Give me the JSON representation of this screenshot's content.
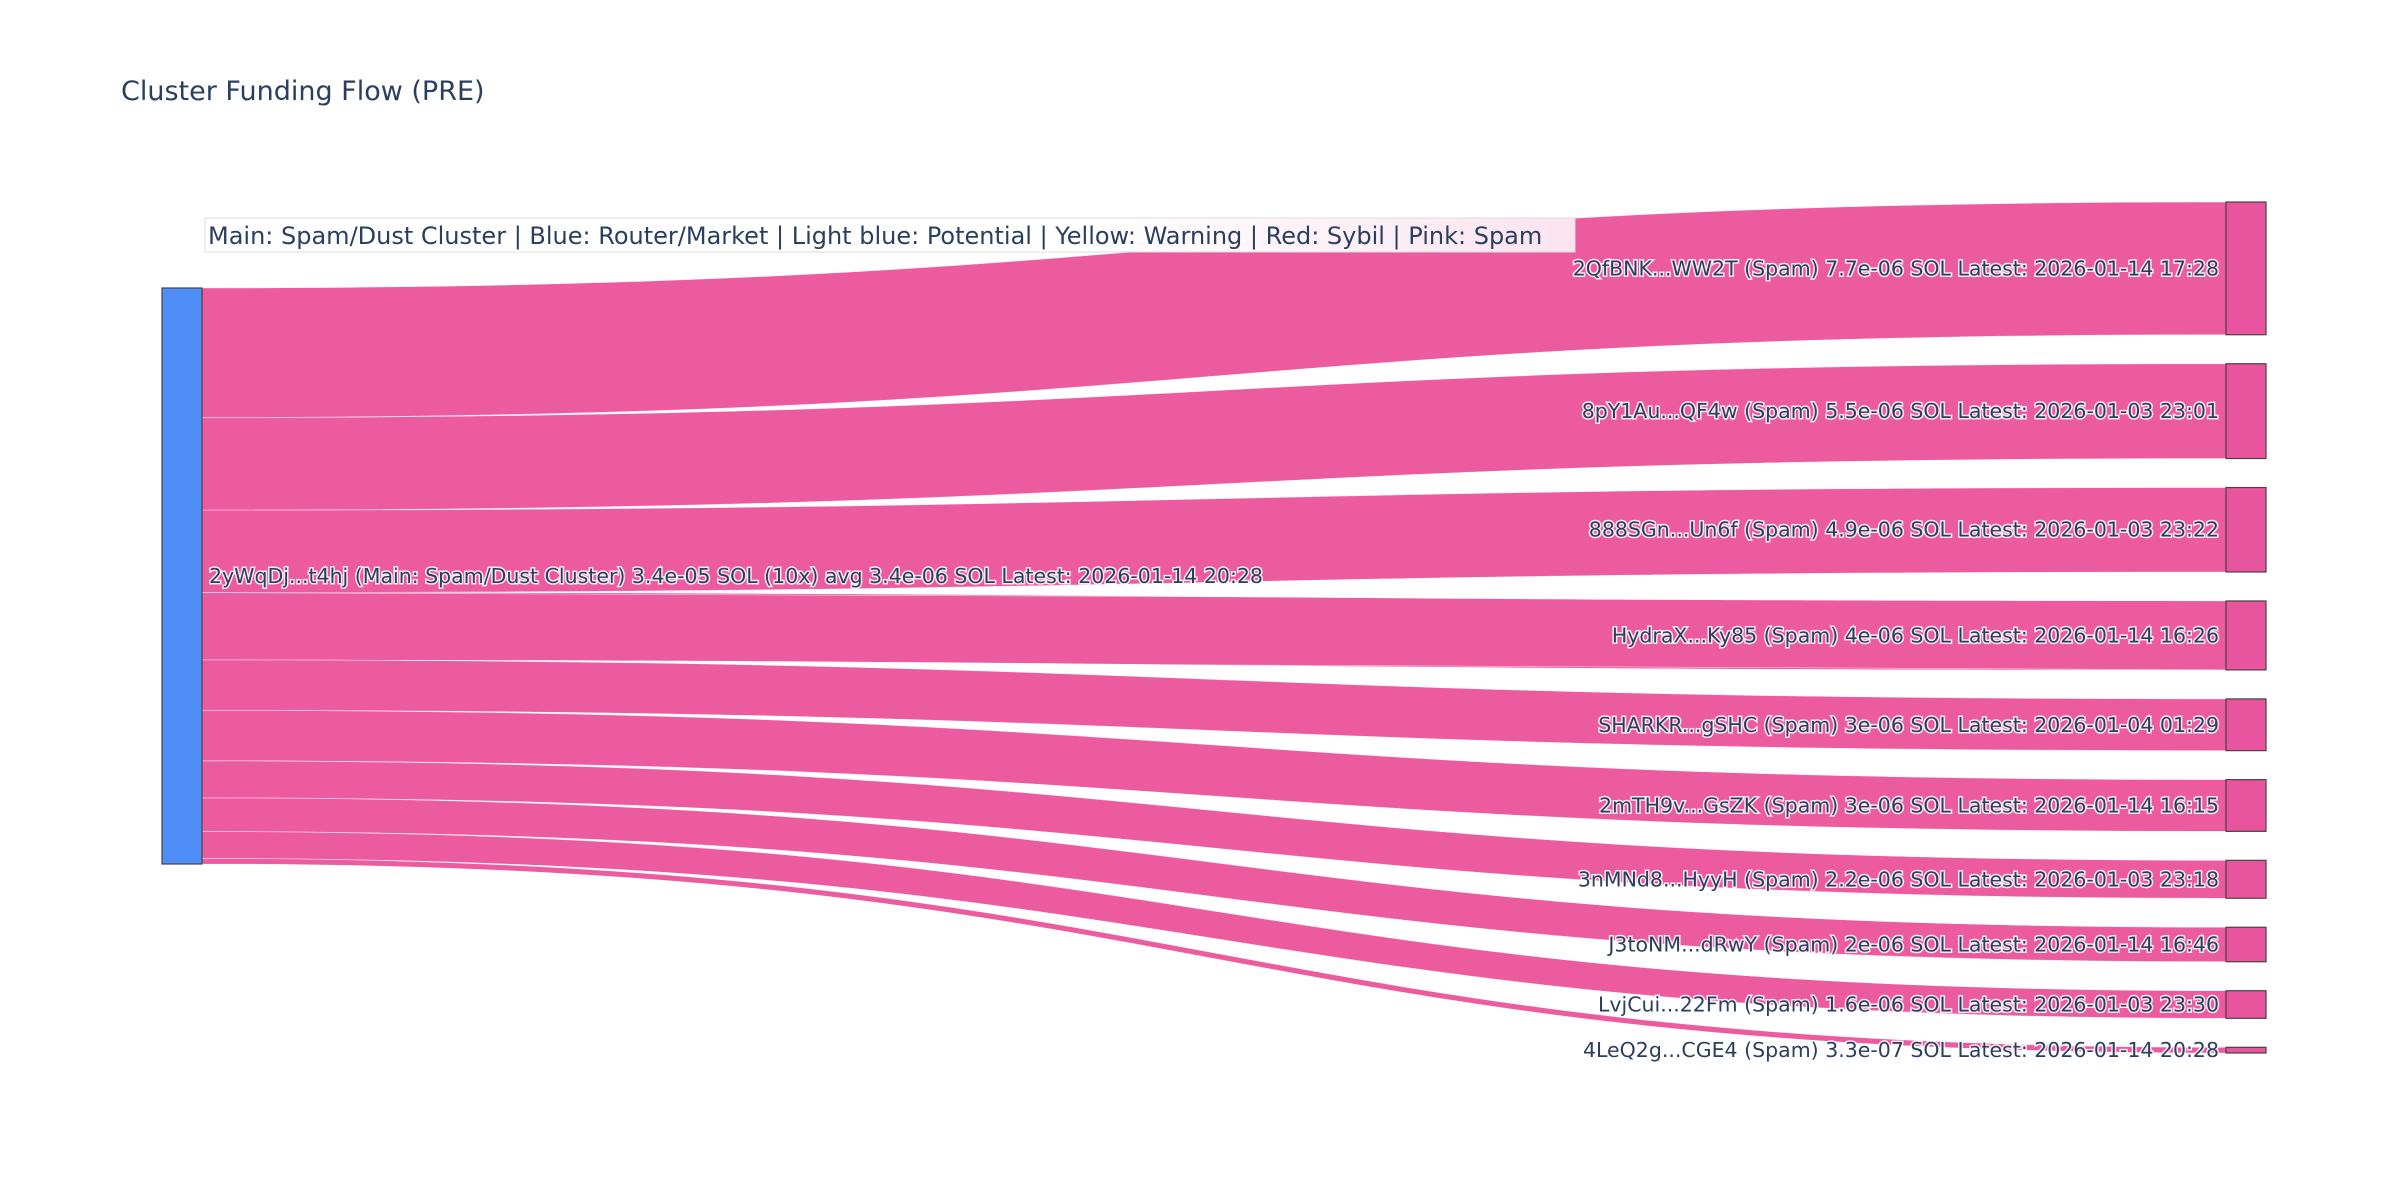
{
  "title": "Cluster Funding Flow (PRE)",
  "legend": "Main: Spam/Dust Cluster  |  Blue: Router/Market | Light blue: Potential | Yellow: Warning | Red: Sybil | Pink: Spam",
  "colors": {
    "main_node": "#4f8ef7",
    "spam_node": "#e8559e",
    "spam_link": "#ec5aa0",
    "legend_bg_start": "#ffffff",
    "legend_bg_end": "#fbe3ef"
  },
  "chart_data": {
    "type": "sankey",
    "source": {
      "label": "2yWqDj...t4hj (Main: Spam/Dust Cluster) 3.4e-05 SOL (10x) avg 3.4e-06 SOL Latest: 2026-01-14 20:28",
      "value": 3.4e-05
    },
    "targets": [
      {
        "label": "2QfBNK...WW2T (Spam) 7.7e-06 SOL Latest: 2026-01-14 17:28",
        "value": 7.7e-06
      },
      {
        "label": "8pY1Au...QF4w (Spam) 5.5e-06 SOL Latest: 2026-01-03 23:01",
        "value": 5.5e-06
      },
      {
        "label": "888SGn...Un6f (Spam) 4.9e-06 SOL Latest: 2026-01-03 23:22",
        "value": 4.9e-06
      },
      {
        "label": "HydraX...Ky85 (Spam) 4e-06 SOL Latest: 2026-01-14 16:26",
        "value": 4e-06
      },
      {
        "label": "SHARKR...gSHC (Spam) 3e-06 SOL Latest: 2026-01-04 01:29",
        "value": 3e-06
      },
      {
        "label": "2mTH9v...GsZK (Spam) 3e-06 SOL Latest: 2026-01-14 16:15",
        "value": 3e-06
      },
      {
        "label": "3nMNd8...HyyH (Spam) 2.2e-06 SOL Latest: 2026-01-03 23:18",
        "value": 2.2e-06
      },
      {
        "label": "J3toNM...dRwY (Spam) 2e-06 SOL Latest: 2026-01-14 16:46",
        "value": 2e-06
      },
      {
        "label": "LvjCui...22Fm (Spam) 1.6e-06 SOL Latest: 2026-01-03 23:30",
        "value": 1.6e-06
      },
      {
        "label": "4LeQ2g...CGE4 (Spam) 3.3e-07 SOL Latest: 2026-01-14 20:28",
        "value": 3.3e-07
      }
    ]
  }
}
